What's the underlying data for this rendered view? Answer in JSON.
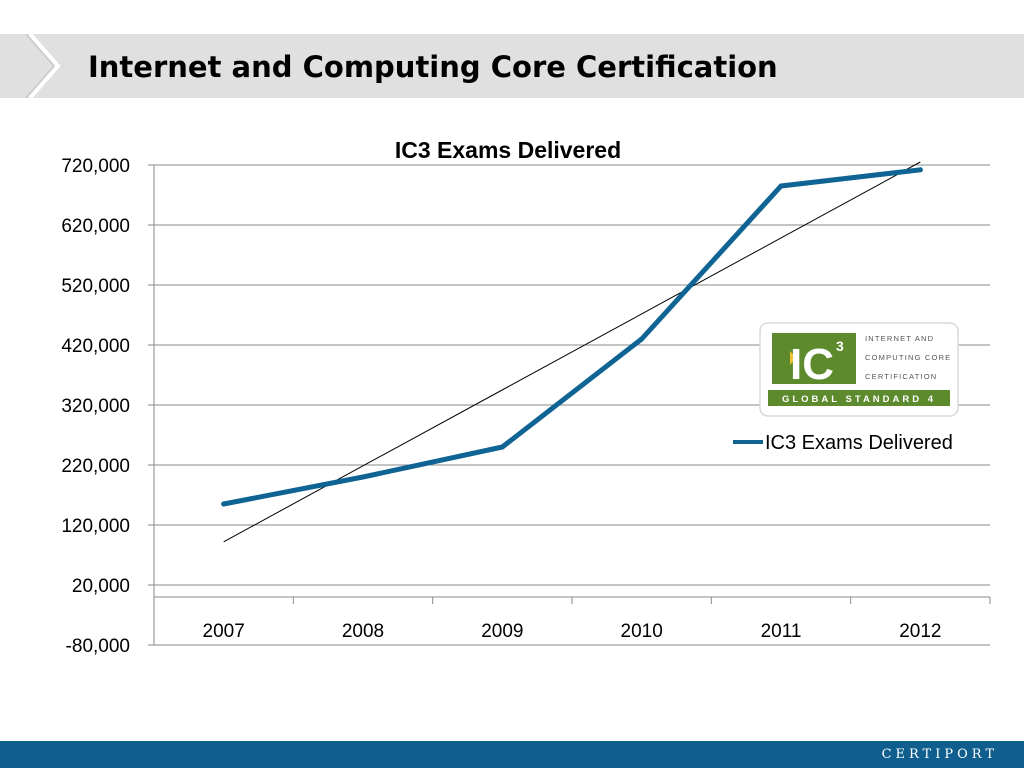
{
  "slide": {
    "title": "Internet and Computing Core Certification"
  },
  "chart_data": {
    "type": "line",
    "title": "IC3 Exams Delivered",
    "xlabel": "",
    "ylabel": "",
    "categories": [
      "2007",
      "2008",
      "2009",
      "2010",
      "2011",
      "2012"
    ],
    "series": [
      {
        "name": "IC3 Exams Delivered",
        "values": [
          155000,
          200000,
          250000,
          430000,
          685000,
          712000
        ],
        "color": "#0f6494"
      }
    ],
    "trendline": {
      "type": "linear",
      "start": 92000,
      "end": 725000,
      "color": "#000000"
    },
    "y_ticks": [
      "720,000",
      "620,000",
      "520,000",
      "420,000",
      "320,000",
      "220,000",
      "120,000",
      "20,000",
      "-80,000"
    ],
    "ylim": [
      -80000,
      720000
    ],
    "grid": true,
    "legend": "right"
  },
  "logo": {
    "mark": "IC",
    "superscript": "3",
    "line1": "INTERNET AND",
    "line2": "COMPUTING CORE",
    "line3": "CERTIFICATION",
    "banner": "GLOBAL STANDARD 4",
    "green": "#5c8a2c"
  },
  "footer": {
    "brand": "CERTIPORT",
    "color": "#0f5e8e"
  }
}
